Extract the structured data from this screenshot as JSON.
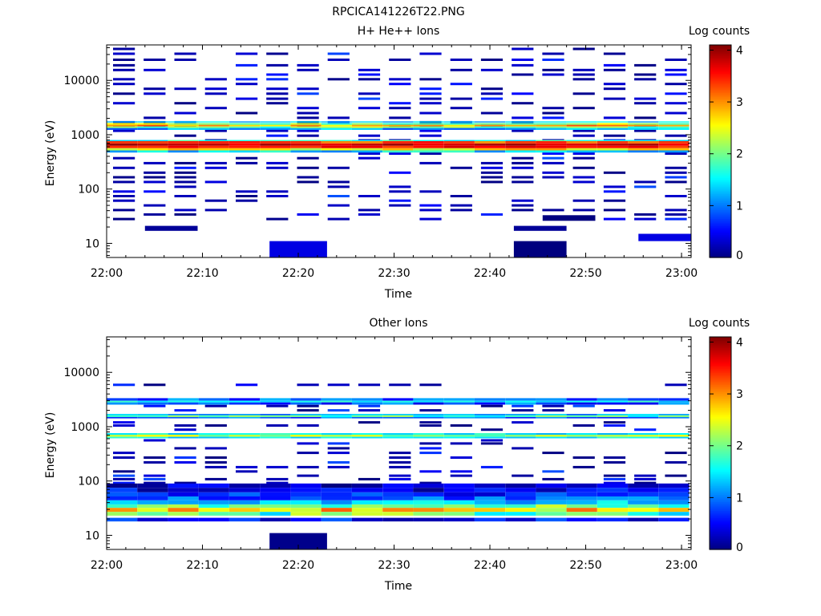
{
  "figure_title": "RPCICA141226T22.PNG",
  "colormap": [
    "#00007f",
    "#0000ff",
    "#007fff",
    "#00ffff",
    "#7fff7f",
    "#ffff00",
    "#ff7f00",
    "#ff0000",
    "#7f0000"
  ],
  "chart_data": [
    {
      "type": "heatmap",
      "title": "H+ He++ Ions",
      "xlabel": "Time",
      "ylabel": "Energy (eV)",
      "xlim": [
        "22:00",
        "23:01"
      ],
      "ylim": [
        5.5,
        45000
      ],
      "yscale": "log",
      "x_ticks": [
        "22:00",
        "22:10",
        "22:20",
        "22:30",
        "22:40",
        "22:50",
        "23:00"
      ],
      "y_ticks": [
        10,
        100,
        1000,
        10000
      ],
      "y_tick_labels": [
        "10",
        "100",
        "1000",
        "10000"
      ],
      "colorbar": {
        "label": "Log counts",
        "range": [
          0,
          4.1
        ],
        "ticks": [
          0,
          1,
          2,
          3,
          4
        ]
      },
      "time_bins": [
        "22:00",
        "22:03:12",
        "22:06:24",
        "22:09:36",
        "22:12:48",
        "22:16:00",
        "22:19:12",
        "22:22:24",
        "22:25:36",
        "22:28:48",
        "22:32:00",
        "22:35:12",
        "22:38:24",
        "22:41:36",
        "22:44:48",
        "22:48:00",
        "22:51:12",
        "22:54:24",
        "22:57:36",
        "23:00:48"
      ],
      "sparse_seed": 11,
      "band_columns": 19,
      "sparse_energies": [
        38000,
        31000,
        24000,
        19000,
        15500,
        12800,
        10500,
        8600,
        7000,
        5700,
        4600,
        3800,
        3100,
        2500,
        2050,
        1700,
        1450,
        1180,
        960,
        790,
        450,
        370,
        300,
        245,
        200,
        165,
        135,
        110,
        90,
        74,
        61,
        50,
        41,
        34,
        28
      ],
      "sparse_probability": 0.42,
      "bands": [
        {
          "e_low": 1680,
          "e_high": 1760,
          "vmin": 1.1,
          "vmax": 1.7
        },
        {
          "e_low": 1520,
          "e_high": 1640,
          "vmin": 1.6,
          "vmax": 2.6
        },
        {
          "e_low": 1420,
          "e_high": 1520,
          "vmin": 2.5,
          "vmax": 3.3
        },
        {
          "e_low": 1330,
          "e_high": 1420,
          "vmin": 1.5,
          "vmax": 2.4
        },
        {
          "e_low": 1230,
          "e_high": 1330,
          "vmin": 0.8,
          "vmax": 1.6
        },
        {
          "e_low": 760,
          "e_high": 800,
          "vmin": 1.3,
          "vmax": 2.0
        },
        {
          "e_low": 690,
          "e_high": 760,
          "vmin": 3.0,
          "vmax": 3.6
        },
        {
          "e_low": 625,
          "e_high": 690,
          "vmin": 3.6,
          "vmax": 4.0
        },
        {
          "e_low": 565,
          "e_high": 625,
          "vmin": 3.3,
          "vmax": 3.8
        },
        {
          "e_low": 515,
          "e_high": 565,
          "vmin": 2.2,
          "vmax": 3.0
        },
        {
          "e_low": 470,
          "e_high": 515,
          "vmin": 1.0,
          "vmax": 1.8
        }
      ],
      "blocks": [
        {
          "start": "22:17:00",
          "end": "22:23:00",
          "e_low": 5.5,
          "e_high": 11,
          "value": 0.4
        },
        {
          "start": "22:42:30",
          "end": "22:48:00",
          "e_low": 5.5,
          "e_high": 11,
          "value": 0.0
        },
        {
          "start": "22:45:30",
          "end": "22:51:00",
          "e_low": 26,
          "e_high": 33,
          "value": 0.0
        },
        {
          "start": "22:55:30",
          "end": "23:01:00",
          "e_low": 11,
          "e_high": 15,
          "value": 0.4
        },
        {
          "start": "22:04:00",
          "end": "22:09:30",
          "e_low": 17,
          "e_high": 21,
          "value": 0.1
        },
        {
          "start": "22:42:30",
          "end": "22:48:00",
          "e_low": 17,
          "e_high": 21,
          "value": 0.1
        }
      ]
    },
    {
      "type": "heatmap",
      "title": "Other Ions",
      "xlabel": "Time",
      "ylabel": "Energy (eV)",
      "xlim": [
        "22:00",
        "23:01"
      ],
      "ylim": [
        5.5,
        45000
      ],
      "yscale": "log",
      "x_ticks": [
        "22:00",
        "22:10",
        "22:20",
        "22:30",
        "22:40",
        "22:50",
        "23:00"
      ],
      "y_ticks": [
        10,
        100,
        1000,
        10000
      ],
      "y_tick_labels": [
        "10",
        "100",
        "1000",
        "10000"
      ],
      "colorbar": {
        "label": "Log counts",
        "range": [
          0,
          4.1
        ],
        "ticks": [
          0,
          1,
          2,
          3,
          4
        ]
      },
      "time_bins": [
        "22:00",
        "22:03:12",
        "22:06:24",
        "22:09:36",
        "22:12:48",
        "22:16:00",
        "22:19:12",
        "22:22:24",
        "22:25:36",
        "22:28:48",
        "22:32:00",
        "22:35:12",
        "22:38:24",
        "22:41:36",
        "22:44:48",
        "22:48:00",
        "22:51:12",
        "22:54:24",
        "22:57:36",
        "23:00:48"
      ],
      "sparse_seed": 29,
      "band_columns": 19,
      "sparse_energies": [
        5900,
        2400,
        2000,
        1200,
        1050,
        880,
        560,
        490,
        400,
        330,
        270,
        220,
        180,
        150,
        125,
        108,
        92
      ],
      "sparse_probability": 0.4,
      "bands": [
        {
          "e_low": 3000,
          "e_high": 3350,
          "vmin": 0.5,
          "vmax": 1.4
        },
        {
          "e_low": 2800,
          "e_high": 3000,
          "vmin": 1.2,
          "vmax": 1.8
        },
        {
          "e_low": 2550,
          "e_high": 2800,
          "vmin": 0.4,
          "vmax": 1.3
        },
        {
          "e_low": 1620,
          "e_high": 1720,
          "vmin": 0.8,
          "vmax": 1.5
        },
        {
          "e_low": 1500,
          "e_high": 1620,
          "vmin": 1.4,
          "vmax": 2.2
        },
        {
          "e_low": 1420,
          "e_high": 1500,
          "vmin": 0.6,
          "vmax": 1.2
        },
        {
          "e_low": 710,
          "e_high": 760,
          "vmin": 1.2,
          "vmax": 1.8
        },
        {
          "e_low": 650,
          "e_high": 710,
          "vmin": 1.8,
          "vmax": 2.6
        },
        {
          "e_low": 610,
          "e_high": 650,
          "vmin": 1.2,
          "vmax": 1.8
        },
        {
          "e_low": 75,
          "e_high": 90,
          "vmin": 0.0,
          "vmax": 0.6
        },
        {
          "e_low": 62,
          "e_high": 75,
          "vmin": 0.0,
          "vmax": 0.8
        },
        {
          "e_low": 52,
          "e_high": 62,
          "vmin": 0.3,
          "vmax": 1.0
        },
        {
          "e_low": 44,
          "e_high": 52,
          "vmin": 0.5,
          "vmax": 1.2
        },
        {
          "e_low": 37,
          "e_high": 44,
          "vmin": 1.0,
          "vmax": 1.7
        },
        {
          "e_low": 32,
          "e_high": 37,
          "vmin": 1.6,
          "vmax": 2.4
        },
        {
          "e_low": 27,
          "e_high": 32,
          "vmin": 2.2,
          "vmax": 3.3
        },
        {
          "e_low": 23,
          "e_high": 27,
          "vmin": 1.3,
          "vmax": 2.4
        },
        {
          "e_low": 18,
          "e_high": 21,
          "vmin": 0.0,
          "vmax": 0.9
        }
      ],
      "blocks": [
        {
          "start": "22:17:00",
          "end": "22:23:00",
          "e_low": 5.5,
          "e_high": 11,
          "value": 0.05
        }
      ]
    }
  ]
}
